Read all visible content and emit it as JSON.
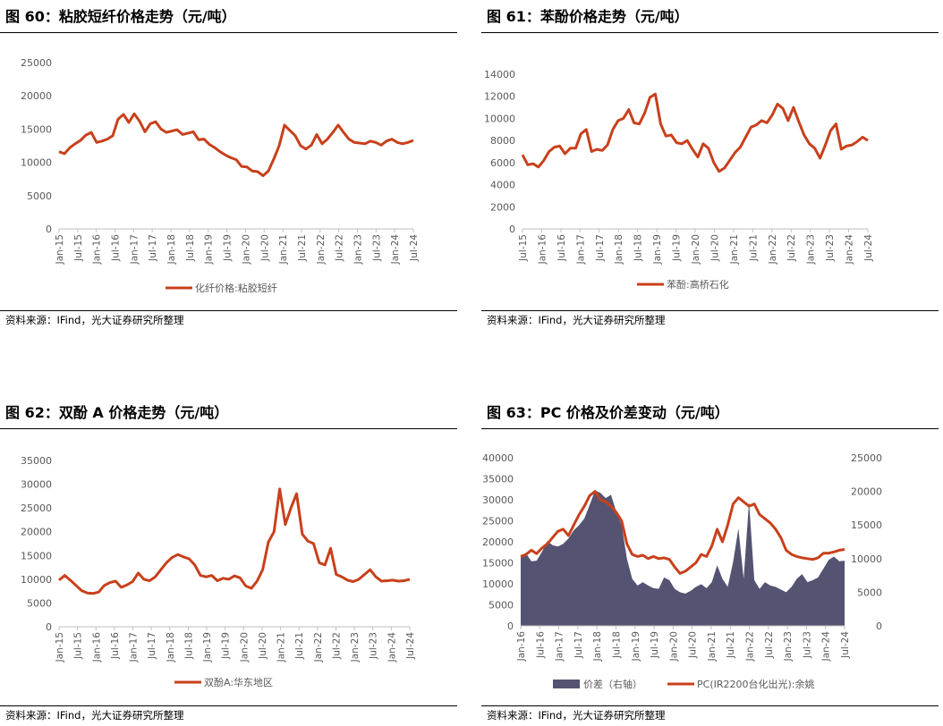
{
  "source_text": "资料来源：IFind，光大证券研究所整理",
  "colors": {
    "line": "#C8401B",
    "area": "#545372",
    "axis": "#BFBFBF"
  },
  "charts": [
    {
      "title": "图 60：粘胶短纤价格走势（元/吨）",
      "chart_data": {
        "type": "line",
        "x_labels": [
          "Jan-15",
          "Jul-15",
          "Jan-16",
          "Jul-16",
          "Jan-17",
          "Jul-17",
          "Jan-18",
          "Jul-18",
          "Jan-19",
          "Jul-19",
          "Jan-20",
          "Jul-20",
          "Jan-21",
          "Jul-21",
          "Jan-22",
          "Jul-22",
          "Jan-23",
          "Jul-23",
          "Jan-24",
          "Jul-24"
        ],
        "ylim": [
          0,
          25000
        ],
        "y_ticks": [
          0,
          5000,
          10000,
          15000,
          20000,
          25000
        ],
        "series": [
          {
            "name": "化纤价格:粘胶短纤",
            "values": [
              11600,
              11300,
              12200,
              12800,
              13300,
              14100,
              14500,
              13000,
              13200,
              13500,
              14000,
              16500,
              17200,
              16000,
              17300,
              16200,
              14600,
              15800,
              16100,
              15000,
              14500,
              14700,
              14900,
              14200,
              14400,
              14600,
              13400,
              13500,
              12700,
              12200,
              11600,
              11100,
              10700,
              10400,
              9400,
              9300,
              8700,
              8600,
              8000,
              8700,
              10500,
              12500,
              15600,
              14800,
              14000,
              12500,
              12000,
              12600,
              14200,
              12800,
              13500,
              14500,
              15600,
              14500,
              13500,
              13000,
              12900,
              12800,
              13200,
              13000,
              12600,
              13200,
              13500,
              13000,
              12800,
              13000,
              13300
            ]
          }
        ]
      }
    },
    {
      "title": "图 61：苯酚价格走势（元/吨）",
      "chart_data": {
        "type": "line",
        "x_labels": [
          "Jul-15",
          "Jan-16",
          "Jul-16",
          "Jan-17",
          "Jul-17",
          "Jan-18",
          "Jul-18",
          "Jan-19",
          "Jul-19",
          "Jan-20",
          "Jul-20",
          "Jan-21",
          "Jul-21",
          "Jan-22",
          "Jul-22",
          "Jan-23",
          "Jul-23",
          "Jan-24",
          "Jul-24"
        ],
        "ylim": [
          0,
          14000
        ],
        "y_ticks": [
          0,
          2000,
          4000,
          6000,
          8000,
          10000,
          12000,
          14000
        ],
        "series": [
          {
            "name": "苯酚:高桥石化",
            "values": [
              6700,
              5800,
              5900,
              5600,
              6200,
              7000,
              7400,
              7500,
              6800,
              7300,
              7300,
              8600,
              9000,
              7000,
              7200,
              7100,
              7600,
              9000,
              9800,
              10000,
              10800,
              9600,
              9500,
              10500,
              11900,
              12200,
              9500,
              8400,
              8500,
              7800,
              7700,
              8000,
              7200,
              6500,
              7700,
              7300,
              6000,
              5200,
              5500,
              6200,
              6900,
              7400,
              8300,
              9200,
              9400,
              9800,
              9600,
              10300,
              11300,
              10900,
              9800,
              11000,
              9700,
              8500,
              7700,
              7300,
              6400,
              7600,
              8900,
              9500,
              7200,
              7500,
              7600,
              7900,
              8300,
              8000
            ]
          }
        ]
      }
    },
    {
      "title": "图 62：双酚 A 价格走势（元/吨）",
      "chart_data": {
        "type": "line",
        "x_labels": [
          "Jan-15",
          "Jul-15",
          "Jan-16",
          "Jul-16",
          "Jan-17",
          "Jul-17",
          "Jan-18",
          "Jul-18",
          "Jan-19",
          "Jul-19",
          "Jan-20",
          "Jul-20",
          "Jan-21",
          "Jul-21",
          "Jan-22",
          "Jul-22",
          "Jan-23",
          "Jul-23",
          "Jan-24",
          "Jul-24"
        ],
        "ylim": [
          0,
          35000
        ],
        "y_ticks": [
          0,
          5000,
          10000,
          15000,
          20000,
          25000,
          30000,
          35000
        ],
        "series": [
          {
            "name": "双酚A:华东地区",
            "values": [
              9800,
              10800,
              9800,
              8700,
              7600,
              7100,
              7000,
              7300,
              8700,
              9300,
              9600,
              8300,
              8800,
              9500,
              11300,
              10000,
              9700,
              10500,
              12000,
              13500,
              14600,
              15200,
              14700,
              14300,
              13000,
              10800,
              10500,
              10800,
              9700,
              10200,
              10000,
              10700,
              10300,
              8600,
              8100,
              9600,
              12000,
              17800,
              20000,
              29000,
              21500,
              25000,
              28000,
              19500,
              18000,
              17500,
              13500,
              13000,
              16500,
              11000,
              10500,
              9800,
              9500,
              10000,
              11000,
              12000,
              10500,
              9600,
              9700,
              9800,
              9600,
              9700,
              10000
            ]
          }
        ]
      }
    },
    {
      "title": "图 63：PC 价格及价差变动（元/吨）",
      "chart_data": {
        "type": "area",
        "x_labels": [
          "Jan-16",
          "Jul-16",
          "Jan-17",
          "Jul-17",
          "Jan-18",
          "Jul-18",
          "Jan-19",
          "Jul-19",
          "Jan-20",
          "Jul-20",
          "Jan-21",
          "Jul-21",
          "Jan-22",
          "Jul-22",
          "Jan-23",
          "Jul-23",
          "Jan-24",
          "Jul-24"
        ],
        "ylim_left": [
          0,
          40000
        ],
        "y_ticks_left": [
          0,
          5000,
          10000,
          15000,
          20000,
          25000,
          30000,
          35000,
          40000
        ],
        "ylim_right": [
          0,
          25000
        ],
        "y_ticks_right": [
          0,
          5000,
          10000,
          15000,
          20000,
          25000
        ],
        "series": [
          {
            "name": "价差（右轴）",
            "axis": "right",
            "kind": "area",
            "values": [
              10500,
              10800,
              9600,
              9700,
              11000,
              12600,
              12000,
              11800,
              12200,
              13000,
              14200,
              15000,
              16000,
              18000,
              20100,
              19800,
              19000,
              19500,
              17000,
              15000,
              10000,
              7000,
              6000,
              6500,
              6000,
              5600,
              5500,
              7200,
              6800,
              5500,
              5000,
              4800,
              5200,
              5800,
              6200,
              5600,
              6500,
              9000,
              7000,
              5800,
              9500,
              14500,
              7000,
              18500,
              6800,
              5500,
              6500,
              6000,
              5800,
              5400,
              5000,
              5800,
              7000,
              7700,
              6500,
              6800,
              7200,
              8500,
              9800,
              10300,
              9600,
              9700
            ]
          },
          {
            "name": "PC(IR2200台化出光):余姚",
            "axis": "left",
            "kind": "line",
            "values": [
              16500,
              17000,
              18000,
              17200,
              18500,
              19500,
              21000,
              22500,
              23000,
              21500,
              24000,
              26500,
              28500,
              31000,
              32000,
              30000,
              29500,
              28500,
              27000,
              25000,
              19500,
              17000,
              16500,
              16800,
              16000,
              16500,
              16000,
              16200,
              15800,
              14000,
              12500,
              13000,
              14000,
              15000,
              17000,
              16500,
              19000,
              23000,
              20000,
              24000,
              29000,
              30500,
              29500,
              28500,
              29000,
              26500,
              25500,
              24500,
              23000,
              21000,
              18000,
              17000,
              16500,
              16200,
              16000,
              15800,
              16200,
              17300,
              17300,
              17600,
              18000,
              18200
            ]
          }
        ]
      }
    }
  ]
}
